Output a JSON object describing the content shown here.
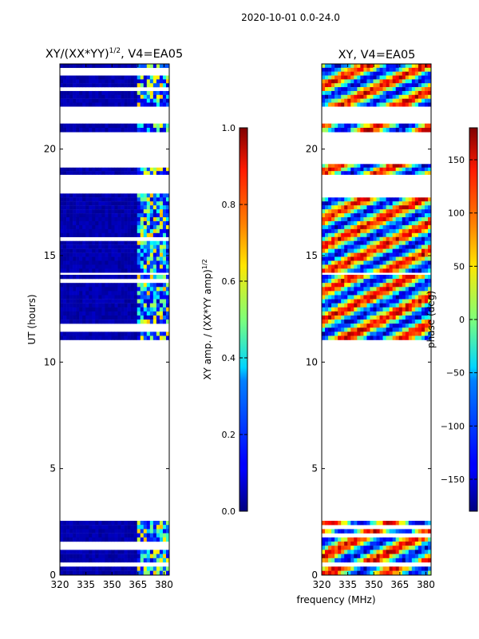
{
  "figure": {
    "suptitle": "2020-10-01 0.0-24.0",
    "shared_xlabel": "frequency (MHz)"
  },
  "chart_data": [
    {
      "type": "heatmap",
      "title_prefix": "XY/(XX*YY)",
      "title_sup": "1/2",
      "title_suffix": ", V4=EA05",
      "xlabel": "",
      "ylabel": "UT (hours)",
      "xlim": [
        320,
        383
      ],
      "ylim": [
        0,
        24
      ],
      "xticks": [
        "320",
        "335",
        "350",
        "365",
        "380"
      ],
      "xtick_values": [
        320,
        335,
        350,
        365,
        380
      ],
      "yticks": [
        "0",
        "5",
        "10",
        "15",
        "20"
      ],
      "ytick_values": [
        0,
        5,
        10,
        15,
        20
      ],
      "data_bands_hours": [
        [
          0.0,
          0.4
        ],
        [
          0.6,
          2.55
        ],
        [
          10.85,
          14.1
        ],
        [
          14.2,
          18.1
        ],
        [
          18.8,
          19.3
        ],
        [
          20.8,
          21.2
        ],
        [
          22.0,
          24.0
        ]
      ],
      "colorbar": {
        "label": "XY amp. / (XX*YY amp)",
        "label_sup": "1/2",
        "range": [
          0.0,
          1.0
        ],
        "ticks": [
          "0.0",
          "0.2",
          "0.4",
          "0.6",
          "0.8",
          "1.0"
        ],
        "tick_values": [
          0.0,
          0.2,
          0.4,
          0.6,
          0.8,
          1.0
        ]
      }
    },
    {
      "type": "heatmap",
      "title": "XY, V4=EA05",
      "xlabel": "frequency (MHz)",
      "ylabel": "",
      "xlim": [
        320,
        383
      ],
      "ylim": [
        0,
        24
      ],
      "xticks": [
        "320",
        "335",
        "350",
        "365",
        "380"
      ],
      "xtick_values": [
        320,
        335,
        350,
        365,
        380
      ],
      "yticks": [
        "0",
        "5",
        "10",
        "15",
        "20"
      ],
      "ytick_values": [
        0,
        5,
        10,
        15,
        20
      ],
      "data_bands_hours": [
        [
          0.0,
          0.4
        ],
        [
          0.6,
          2.55
        ],
        [
          10.85,
          14.1
        ],
        [
          14.2,
          18.1
        ],
        [
          18.8,
          19.3
        ],
        [
          20.8,
          21.2
        ],
        [
          22.0,
          24.0
        ]
      ],
      "colorbar": {
        "label": "phase (deg)",
        "range": [
          -180,
          180
        ],
        "ticks": [
          "−150",
          "−100",
          "−50",
          "0",
          "50",
          "100",
          "150"
        ],
        "tick_values": [
          -150,
          -100,
          -50,
          0,
          50,
          100,
          150
        ]
      }
    }
  ]
}
